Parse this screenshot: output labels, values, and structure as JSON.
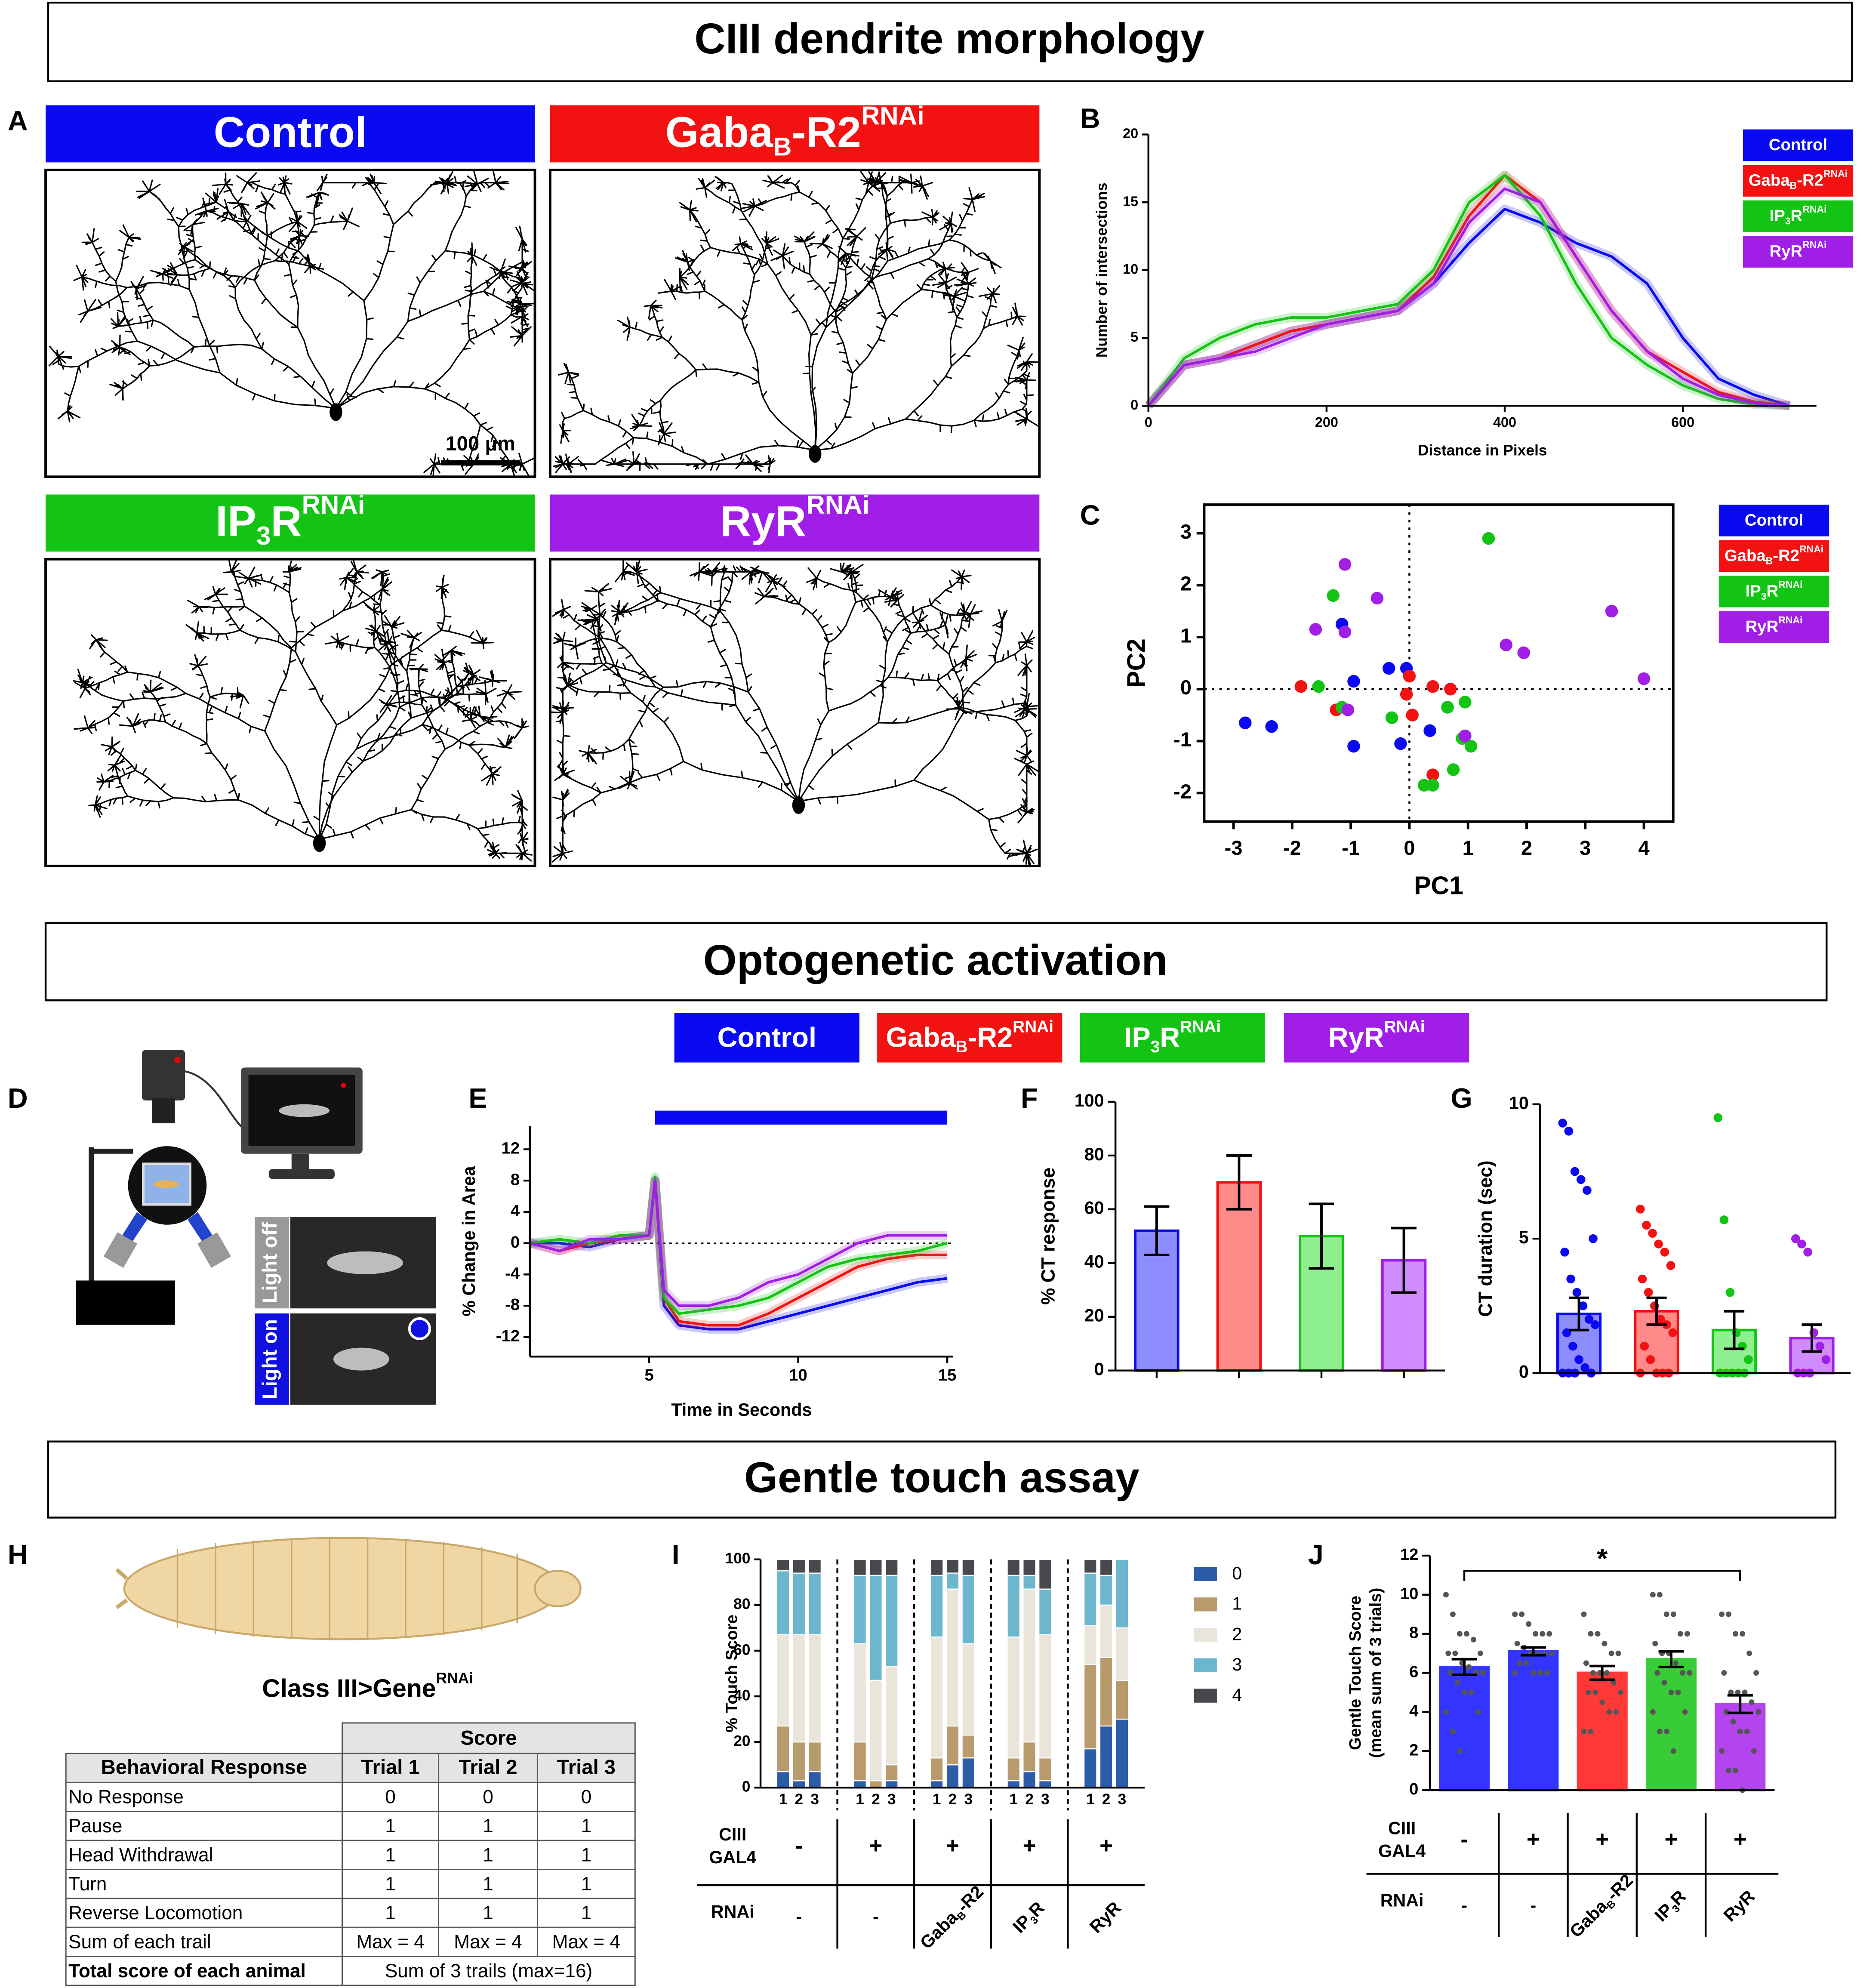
{
  "sections": [
    "CIII dendrite morphology",
    "Optogenetic activation",
    "Gentle touch assay"
  ],
  "panels": [
    "A",
    "B",
    "C",
    "D",
    "E",
    "F",
    "G",
    "H",
    "I",
    "J"
  ],
  "groups": [
    {
      "name": [
        {
          "text": "Control"
        }
      ],
      "color": "#0a0af2"
    },
    {
      "name": [
        {
          "text": "Gaba"
        },
        {
          "text": "B",
          "sub": true
        },
        {
          "text": "-R2"
        },
        {
          "text": "RNAi",
          "sup": true
        }
      ],
      "color": "#f21212"
    },
    {
      "name": [
        {
          "text": "IP"
        },
        {
          "text": "3",
          "sub": true
        },
        {
          "text": "R"
        },
        {
          "text": "RNAi",
          "sup": true
        }
      ],
      "color": "#14c414"
    },
    {
      "name": [
        {
          "text": "RyR"
        },
        {
          "text": "RNAi",
          "sup": true
        }
      ],
      "color": "#a01ee6"
    }
  ],
  "scale_bar": "100 μm",
  "schematic_labels": [
    "Light off",
    "Light on"
  ],
  "table": {
    "caption": [
      {
        "text": "Class III>Gene"
      },
      {
        "text": "RNAi",
        "sup": true
      }
    ],
    "group_header": "Score",
    "columns": [
      "Behavioral Response",
      "Trial 1",
      "Trial 2",
      "Trial 3"
    ],
    "rows": [
      [
        "No Response",
        0,
        0,
        0
      ],
      [
        "Pause",
        1,
        1,
        1
      ],
      [
        "Head Withdrawal",
        1,
        1,
        1
      ],
      [
        "Turn",
        1,
        1,
        1
      ],
      [
        "Reverse Locomotion",
        1,
        1,
        1
      ],
      [
        "Sum of each trail",
        "Max = 4",
        "Max = 4",
        "Max = 4"
      ]
    ],
    "footer": [
      "Total score of each animal",
      "Sum of 3 trails (max=16)"
    ]
  },
  "genotype": {
    "gal4_label": [
      "CIII",
      "GAL4"
    ],
    "gal4": [
      "-",
      "+",
      "+",
      "+",
      "+"
    ],
    "rnai_label": "RNAi",
    "rnai": [
      [
        {
          "text": "-"
        }
      ],
      [
        {
          "text": "-"
        }
      ],
      [
        {
          "text": "Gaba"
        },
        {
          "text": "B",
          "sub": true
        },
        {
          "text": "-R2"
        }
      ],
      [
        {
          "text": "IP"
        },
        {
          "text": "3",
          "sub": true
        },
        {
          "text": "R"
        }
      ],
      [
        {
          "text": "RyR"
        }
      ]
    ]
  },
  "chart_data": [
    {
      "type": "line",
      "xlabel": "Distance in Pixels",
      "ylabel": "Number of intersections",
      "xlim": [
        0,
        750
      ],
      "xticks": [
        0,
        200,
        400,
        600
      ],
      "ylim": [
        0,
        20
      ],
      "yticks": [
        0,
        5,
        10,
        15,
        20
      ],
      "x": [
        0,
        40,
        80,
        120,
        160,
        200,
        240,
        280,
        320,
        360,
        400,
        440,
        480,
        520,
        560,
        600,
        640,
        680,
        720
      ],
      "series": [
        {
          "name": [
            {
              "text": "Control"
            }
          ],
          "color": "#0a0af2",
          "values": [
            0,
            3,
            3.5,
            4.5,
            5.5,
            6,
            6.5,
            7,
            9,
            12,
            14.5,
            13.5,
            12,
            11,
            9,
            5,
            2,
            0.8,
            0
          ]
        },
        {
          "name": [
            {
              "text": "Gaba"
            },
            {
              "text": "B",
              "sub": true
            },
            {
              "text": "-R2"
            },
            {
              "text": "RNAi",
              "sup": true
            }
          ],
          "color": "#f21212",
          "values": [
            0,
            3,
            3.5,
            4.5,
            5.5,
            6,
            6.5,
            7,
            9.5,
            14,
            17,
            15,
            11,
            7,
            4,
            2.5,
            1,
            0.3,
            0
          ]
        },
        {
          "name": [
            {
              "text": "IP"
            },
            {
              "text": "3",
              "sub": true
            },
            {
              "text": "R"
            },
            {
              "text": "RNAi",
              "sup": true
            }
          ],
          "color": "#14c414",
          "values": [
            0,
            3.5,
            5,
            6,
            6.5,
            6.5,
            7,
            7.5,
            10,
            15,
            17,
            14,
            9,
            5,
            3,
            1.5,
            0.5,
            0.1,
            0
          ]
        },
        {
          "name": [
            {
              "text": "RyR"
            },
            {
              "text": "RNAi",
              "sup": true
            }
          ],
          "color": "#a01ee6",
          "values": [
            0,
            3,
            3.5,
            4,
            5,
            6,
            6.5,
            7,
            9,
            13.5,
            16,
            15,
            11,
            7,
            4,
            2,
            0.8,
            0.2,
            0
          ]
        }
      ]
    },
    {
      "type": "scatter",
      "xlabel": "PC1",
      "ylabel": "PC2",
      "xlim": [
        -3.5,
        4.5
      ],
      "xticks": [
        -3,
        -2,
        -1,
        0,
        1,
        2,
        3,
        4
      ],
      "ylim": [
        -2.55,
        3.55
      ],
      "yticks": [
        -2,
        -1,
        0,
        1,
        2,
        3
      ],
      "series": [
        {
          "name": [
            {
              "text": "Control"
            }
          ],
          "color": "#0a0af2",
          "x": [
            -2.8,
            -2.35,
            -1.15,
            -0.95,
            -0.95,
            -0.35,
            -0.05,
            -0.15,
            0.35,
            0.65
          ],
          "values": [
            -0.65,
            -0.72,
            1.25,
            -1.1,
            0.15,
            0.4,
            0.4,
            -1.05,
            -0.8,
            -0.35
          ]
        },
        {
          "name": [
            {
              "text": "Gaba"
            },
            {
              "text": "B",
              "sub": true
            },
            {
              "text": "-R2"
            },
            {
              "text": "RNAi",
              "sup": true
            }
          ],
          "color": "#f21212",
          "x": [
            -1.85,
            -1.25,
            0,
            -0.05,
            0.05,
            0.4,
            0.7,
            0.4
          ],
          "values": [
            0.05,
            -0.4,
            0.25,
            -0.1,
            -0.5,
            0.05,
            0,
            -1.65
          ]
        },
        {
          "name": [
            {
              "text": "IP"
            },
            {
              "text": "3",
              "sub": true
            },
            {
              "text": "R"
            },
            {
              "text": "RNAi",
              "sup": true
            }
          ],
          "color": "#14c414",
          "x": [
            -1.3,
            -1.55,
            -1.15,
            -0.3,
            0.65,
            0.95,
            0.9,
            1.05,
            0.75,
            0.25,
            0.4,
            1.35
          ],
          "values": [
            1.8,
            0.05,
            -0.35,
            -0.55,
            -0.35,
            -0.25,
            -0.95,
            -1.1,
            -1.55,
            -1.85,
            -1.85,
            2.9
          ]
        },
        {
          "name": [
            {
              "text": "RyR"
            },
            {
              "text": "RNAi",
              "sup": true
            }
          ],
          "color": "#a01ee6",
          "x": [
            -1.1,
            -1.6,
            -1.1,
            -0.55,
            -1.05,
            0.95,
            1.65,
            1.95,
            3.45,
            4.0
          ],
          "values": [
            2.4,
            1.15,
            1.1,
            1.75,
            -0.4,
            -0.9,
            0.85,
            0.7,
            1.5,
            0.2
          ]
        }
      ]
    },
    {
      "type": "line",
      "xlabel": "Time in Seconds",
      "ylabel": "% Change in Area",
      "xlim": [
        1,
        15.2
      ],
      "xticks": [
        5,
        10,
        15
      ],
      "ylim": [
        -14.5,
        15
      ],
      "yticks": [
        -12,
        -8,
        -4,
        0,
        4,
        8,
        12
      ],
      "stim": [
        5.2,
        15
      ],
      "x": [
        1,
        2,
        3,
        4,
        5,
        5.2,
        5.5,
        6,
        7,
        8,
        9,
        10,
        11,
        12,
        13,
        14,
        15
      ],
      "series": [
        {
          "name": [
            {
              "text": "Control"
            }
          ],
          "color": "#0a0af2",
          "values": [
            0,
            0,
            -0.5,
            0.5,
            1,
            8,
            -8,
            -10.5,
            -11,
            -11,
            -10,
            -9,
            -8,
            -7,
            -6,
            -5,
            -4.5
          ]
        },
        {
          "name": [
            {
              "text": "Gaba"
            },
            {
              "text": "B",
              "sub": true
            },
            {
              "text": "-R2"
            },
            {
              "text": "RNAi",
              "sup": true
            }
          ],
          "color": "#f21212",
          "values": [
            0,
            -1,
            0,
            0.5,
            1,
            8,
            -7,
            -10,
            -10.5,
            -10.5,
            -9,
            -7,
            -5,
            -3,
            -2,
            -1.5,
            -1.5
          ]
        },
        {
          "name": [
            {
              "text": "IP"
            },
            {
              "text": "3",
              "sub": true
            },
            {
              "text": "R"
            },
            {
              "text": "RNAi",
              "sup": true
            }
          ],
          "color": "#14c414",
          "values": [
            0,
            0.5,
            0,
            1,
            1,
            8.5,
            -7,
            -9,
            -8.5,
            -8,
            -7,
            -5,
            -3,
            -2,
            -1.5,
            -1,
            0
          ]
        },
        {
          "name": [
            {
              "text": "RyR"
            },
            {
              "text": "RNAi",
              "sup": true
            }
          ],
          "color": "#a01ee6",
          "values": [
            0,
            -1,
            0.5,
            0.5,
            1,
            8,
            -6,
            -8,
            -8,
            -7,
            -5,
            -4,
            -2,
            0,
            1,
            1,
            1
          ]
        }
      ]
    },
    {
      "type": "bar",
      "ylabel": "% CT response",
      "ylim": [
        0,
        100
      ],
      "yticks": [
        0,
        20,
        40,
        60,
        80,
        100
      ],
      "values": [
        52,
        70,
        50,
        41
      ],
      "errors": [
        9,
        10,
        12,
        12
      ],
      "colors": [
        "#0a0af2",
        "#f21212",
        "#14c414",
        "#a01ee6"
      ],
      "fill_colors": [
        "#8c8cff",
        "#ff8a8a",
        "#8ef08e",
        "#d08cff"
      ]
    },
    {
      "type": "bar",
      "ylabel": "CT duration (sec)",
      "ylim": [
        0,
        10
      ],
      "yticks": [
        0,
        5,
        10
      ],
      "values": [
        2.2,
        2.3,
        1.6,
        1.3
      ],
      "errors": [
        0.6,
        0.5,
        0.7,
        0.5
      ],
      "colors": [
        "#0a0af2",
        "#f21212",
        "#14c414",
        "#a01ee6"
      ],
      "fill_colors": [
        "#8c8cff",
        "#ff8a8a",
        "#8ef08e",
        "#d08cff"
      ],
      "points": [
        [
          9.3,
          9.0,
          7.5,
          7.2,
          6.8,
          5.0,
          4.5,
          3.5,
          3.0,
          2.5,
          2.0,
          1.8,
          1.5,
          1.0,
          0.5,
          0.2,
          0,
          0,
          0,
          0
        ],
        [
          6.1,
          5.5,
          5.2,
          4.8,
          4.5,
          4.0,
          3.5,
          3.0,
          2.5,
          2.0,
          1.8,
          1.5,
          1.0,
          0.5,
          0,
          0,
          0,
          0
        ],
        [
          9.5,
          5.7,
          3.0,
          1.5,
          1.0,
          0.5,
          0,
          0,
          0,
          0,
          0
        ],
        [
          5.0,
          4.8,
          4.5,
          1.5,
          1.0,
          0.5,
          0,
          0,
          0
        ]
      ]
    },
    {
      "type": "stacked_bar",
      "ylabel": "% Touch Score",
      "ylim": [
        0,
        100
      ],
      "yticks": [
        0,
        20,
        40,
        60,
        80,
        100
      ],
      "categories": [
        "1",
        "2",
        "3",
        "1",
        "2",
        "3",
        "1",
        "2",
        "3",
        "1",
        "2",
        "3",
        "1",
        "2",
        "3"
      ],
      "series": [
        {
          "name": "0",
          "color": "#2d5ca6",
          "values": [
            7,
            3,
            7,
            3,
            0,
            3,
            3,
            10,
            13,
            3,
            7,
            3,
            17,
            27,
            30
          ]
        },
        {
          "name": "1",
          "color": "#b89a6c",
          "values": [
            20,
            17,
            13,
            17,
            3,
            7,
            10,
            17,
            10,
            10,
            13,
            10,
            37,
            30,
            17
          ]
        },
        {
          "name": "2",
          "color": "#e9e5da",
          "values": [
            40,
            47,
            47,
            43,
            44,
            43,
            53,
            60,
            40,
            53,
            67,
            54,
            17,
            23,
            23
          ]
        },
        {
          "name": "3",
          "color": "#6cb7cd",
          "values": [
            28,
            27,
            27,
            30,
            46,
            40,
            27,
            7,
            30,
            27,
            6,
            20,
            23,
            13,
            30
          ]
        },
        {
          "name": "4",
          "color": "#48484d",
          "values": [
            5,
            6,
            6,
            7,
            7,
            7,
            7,
            6,
            7,
            7,
            7,
            13,
            6,
            7,
            0
          ]
        }
      ]
    },
    {
      "type": "bar",
      "ylabel": [
        "Gentle Touch Score",
        "(mean sum of 3 trials)"
      ],
      "ylim": [
        0,
        12
      ],
      "yticks": [
        0,
        2,
        4,
        6,
        8,
        10,
        12
      ],
      "values": [
        6.3,
        7.1,
        6.0,
        6.7,
        4.4
      ],
      "errors": [
        0.4,
        0.2,
        0.35,
        0.4,
        0.45
      ],
      "colors": [
        "#3434ff",
        "#3434ff",
        "#ff3838",
        "#38cc38",
        "#b444ee"
      ],
      "points": [
        [
          10,
          9,
          8,
          8,
          7.7,
          7,
          7,
          7,
          6.5,
          6.3,
          6,
          6,
          6,
          5.5,
          5,
          5,
          4,
          4,
          3,
          2
        ],
        [
          9,
          9,
          8.5,
          8,
          8,
          8,
          7.5,
          7.3,
          7,
          7,
          7,
          7,
          6.5,
          6.5,
          6,
          6,
          6,
          6
        ],
        [
          9,
          8,
          8,
          7.5,
          7,
          7,
          6.5,
          6,
          6,
          6,
          5.5,
          5,
          5,
          5,
          4.5,
          4,
          4,
          3,
          3
        ],
        [
          10,
          10,
          9,
          9,
          8,
          8,
          7.5,
          7,
          7,
          6.5,
          6,
          6,
          6,
          5.5,
          5,
          5,
          4,
          4,
          3,
          3,
          2
        ],
        [
          9,
          9,
          8,
          8,
          7,
          6,
          6,
          5,
          5,
          5,
          4.5,
          4,
          4,
          3.5,
          3,
          3,
          2,
          2,
          1,
          1,
          0
        ]
      ],
      "significance": {
        "label": "*",
        "from": 0,
        "to": 4
      }
    }
  ]
}
